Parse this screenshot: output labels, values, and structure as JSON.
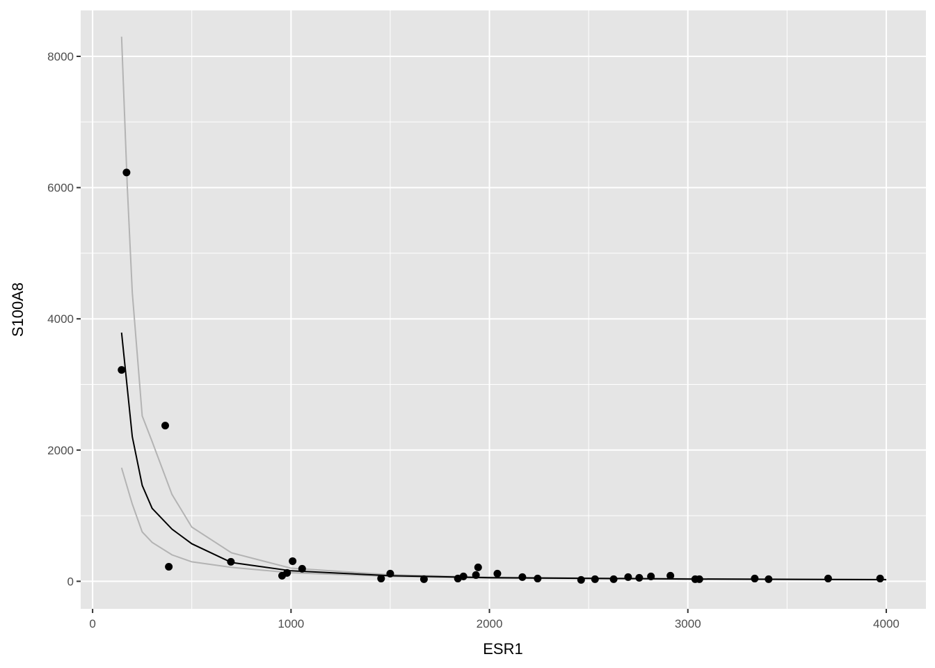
{
  "chart_data": {
    "type": "scatter",
    "title": "",
    "xlabel": "ESR1",
    "ylabel": "S100A8",
    "xlim": [
      -60,
      4200
    ],
    "ylim": [
      -420,
      8700
    ],
    "xticks": [
      0,
      1000,
      2000,
      3000,
      4000
    ],
    "yticks": [
      0,
      2000,
      4000,
      6000,
      8000
    ],
    "xtick_labels": [
      "0",
      "1000",
      "2000",
      "3000",
      "4000"
    ],
    "ytick_labels": [
      "0",
      "2000",
      "4000",
      "6000",
      "8000"
    ],
    "grid": true,
    "colors": {
      "panel": "#e5e5e5",
      "grid": "#ffffff",
      "points": "#000000",
      "fit": "#000000",
      "bounds": "#b3b3b3"
    },
    "points": [
      [
        146,
        3221
      ],
      [
        171,
        6230
      ],
      [
        366,
        2373
      ],
      [
        384,
        222
      ],
      [
        697,
        297
      ],
      [
        955,
        85
      ],
      [
        980,
        127
      ],
      [
        1008,
        307
      ],
      [
        1056,
        191
      ],
      [
        1454,
        42
      ],
      [
        1500,
        117
      ],
      [
        1670,
        32
      ],
      [
        1841,
        42
      ],
      [
        1869,
        74
      ],
      [
        1932,
        95
      ],
      [
        1943,
        212
      ],
      [
        2040,
        117
      ],
      [
        2166,
        64
      ],
      [
        2243,
        42
      ],
      [
        2462,
        21
      ],
      [
        2532,
        32
      ],
      [
        2626,
        32
      ],
      [
        2699,
        64
      ],
      [
        2755,
        53
      ],
      [
        2814,
        74
      ],
      [
        2912,
        85
      ],
      [
        3037,
        32
      ],
      [
        3058,
        32
      ],
      [
        3337,
        42
      ],
      [
        3407,
        32
      ],
      [
        3707,
        42
      ],
      [
        3969,
        42
      ]
    ],
    "curves": [
      {
        "role": "fit",
        "x": [
          146,
          200,
          250,
          300,
          400,
          500,
          700,
          1000,
          1500,
          2000,
          3000,
          4000
        ],
        "y": [
          3790,
          2204,
          1462,
          1112,
          795,
          572,
          286,
          160,
          85,
          55,
          35,
          25
        ]
      },
      {
        "role": "upper",
        "x": [
          146,
          175,
          200,
          250,
          300,
          400,
          500,
          700,
          1000,
          1500,
          2000,
          3000,
          4000
        ],
        "y": [
          8300,
          6000,
          4400,
          2520,
          2130,
          1324,
          826,
          434,
          200,
          100,
          62,
          38,
          28
        ]
      },
      {
        "role": "lower",
        "x": [
          146,
          200,
          250,
          300,
          400,
          500,
          700,
          1000,
          1500,
          2000,
          3000,
          4000
        ],
        "y": [
          1730,
          1176,
          752,
          593,
          403,
          297,
          212,
          130,
          75,
          50,
          32,
          22
        ]
      }
    ]
  }
}
